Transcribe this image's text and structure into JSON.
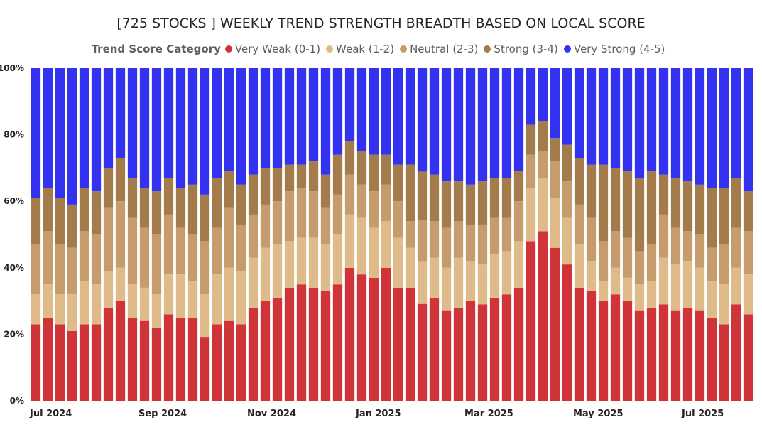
{
  "chart_data": {
    "type": "bar",
    "stacked": true,
    "percent": true,
    "title": "[725 STOCKS ] WEEKLY TREND STRENGTH BREADTH BASED ON LOCAL SCORE",
    "legend_title": "Trend Score Category",
    "legend_position": "top",
    "ylim": [
      0,
      100
    ],
    "y_ticks": [
      {
        "value": 0,
        "label": "0%"
      },
      {
        "value": 20,
        "label": "20%"
      },
      {
        "value": 40,
        "label": "40%"
      },
      {
        "value": 60,
        "label": "60%"
      },
      {
        "value": 80,
        "label": "80%"
      },
      {
        "value": 100,
        "label": "100%"
      }
    ],
    "x_ticks": [
      {
        "index": 0,
        "label": "Jul 2024"
      },
      {
        "index": 9,
        "label": "Sep 2024"
      },
      {
        "index": 18,
        "label": "Nov 2024"
      },
      {
        "index": 27,
        "label": "Jan 2025"
      },
      {
        "index": 36,
        "label": "Mar 2025"
      },
      {
        "index": 45,
        "label": "May 2025"
      },
      {
        "index": 54,
        "label": "Jul 2025"
      }
    ],
    "series": [
      {
        "name": "Very Weak (0-1)",
        "color": "#d13438",
        "values": [
          23,
          25,
          23,
          21,
          23,
          23,
          28,
          30,
          25,
          24,
          22,
          26,
          25,
          25,
          19,
          23,
          24,
          23,
          28,
          30,
          31,
          34,
          35,
          34,
          33,
          35,
          40,
          38,
          37,
          40,
          34,
          34,
          30,
          31,
          27,
          28,
          30,
          29,
          31,
          32,
          34,
          48,
          51,
          46,
          41,
          34,
          33,
          30,
          32,
          30,
          27,
          28,
          29,
          27,
          28,
          27,
          25,
          23,
          29,
          26
        ]
      },
      {
        "name": "Weak (1-2)",
        "color": "#e0bb8a",
        "values": [
          9,
          10,
          9,
          11,
          13,
          12,
          11,
          10,
          10,
          10,
          10,
          12,
          13,
          11,
          13,
          15,
          16,
          16,
          15,
          16,
          16,
          14,
          14,
          15,
          14,
          15,
          16,
          17,
          15,
          14,
          15,
          12,
          13,
          12,
          13,
          15,
          12,
          12,
          13,
          13,
          14,
          16,
          16,
          15,
          14,
          13,
          9,
          6,
          8,
          7,
          8,
          8,
          14,
          14,
          14,
          13,
          11,
          12,
          11,
          12
        ]
      },
      {
        "name": "Neutral (2-3)",
        "color": "#c69c6d",
        "values": [
          15,
          16,
          15,
          14,
          15,
          15,
          19,
          20,
          20,
          18,
          18,
          18,
          14,
          14,
          16,
          14,
          18,
          14,
          13,
          13,
          13,
          15,
          15,
          14,
          11,
          12,
          12,
          10,
          11,
          11,
          11,
          8,
          13,
          11,
          12,
          11,
          11,
          12,
          11,
          10,
          12,
          10,
          8,
          11,
          11,
          12,
          13,
          12,
          11,
          12,
          10,
          11,
          13,
          11,
          9,
          10,
          10,
          12,
          12,
          13
        ]
      },
      {
        "name": "Strong (3-4)",
        "color": "#a47c4b",
        "values": [
          14,
          13,
          14,
          13,
          13,
          13,
          12,
          13,
          12,
          12,
          13,
          11,
          12,
          15,
          14,
          15,
          11,
          12,
          12,
          11,
          10,
          8,
          7,
          9,
          10,
          12,
          10,
          10,
          11,
          9,
          11,
          17,
          15,
          14,
          14,
          12,
          12,
          13,
          12,
          12,
          9,
          9,
          9,
          7,
          11,
          14,
          16,
          23,
          19,
          20,
          22,
          22,
          12,
          15,
          15,
          15,
          18,
          17,
          15,
          12
        ]
      },
      {
        "name": "Very Strong (4-5)",
        "color": "#3232f0",
        "values": [
          39,
          36,
          39,
          41,
          36,
          37,
          30,
          27,
          33,
          36,
          37,
          33,
          36,
          35,
          38,
          33,
          31,
          35,
          32,
          30,
          30,
          29,
          29,
          28,
          32,
          26,
          22,
          25,
          26,
          26,
          29,
          29,
          32,
          32,
          34,
          34,
          35,
          34,
          33,
          33,
          31,
          17,
          16,
          21,
          23,
          27,
          29,
          29,
          30,
          31,
          33,
          31,
          32,
          33,
          34,
          35,
          36,
          36,
          33,
          37
        ]
      }
    ]
  }
}
